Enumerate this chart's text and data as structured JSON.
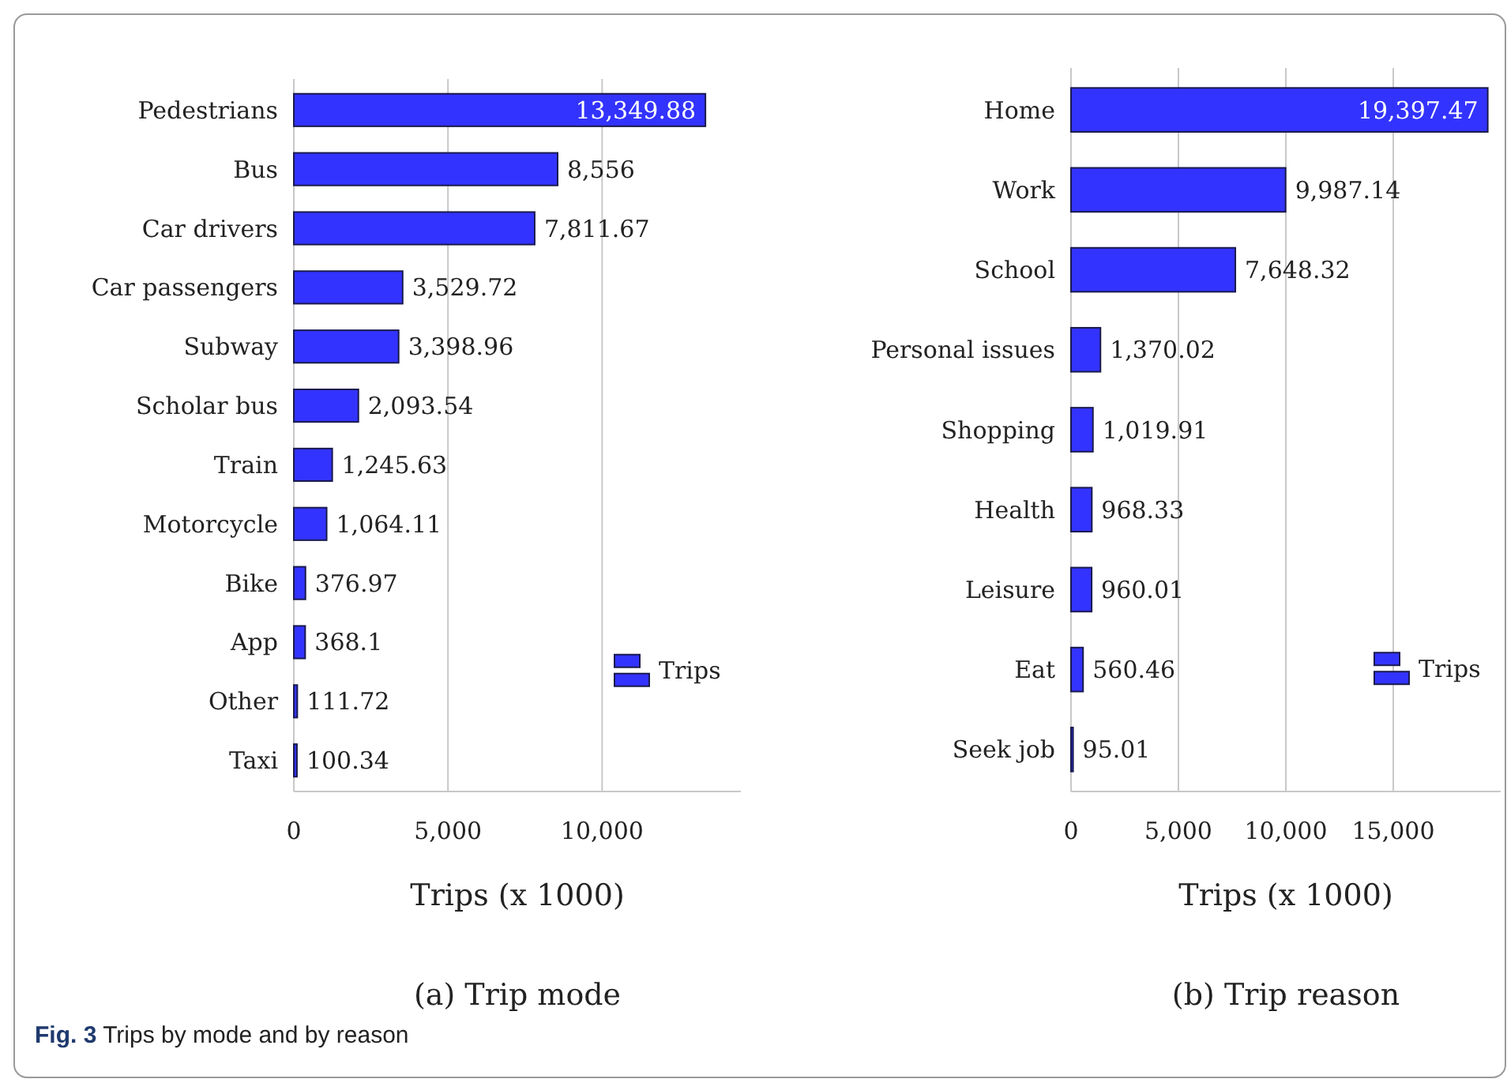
{
  "chart_data": [
    {
      "type": "bar",
      "orientation": "horizontal",
      "title": "(a) Trip mode",
      "xlabel": "Trips (x 1000)",
      "categories": [
        "Pedestrians",
        "Bus",
        "Car drivers",
        "Car passengers",
        "Subway",
        "Scholar bus",
        "Train",
        "Motorcycle",
        "Bike",
        "App",
        "Other",
        "Taxi"
      ],
      "series": [
        {
          "name": "Trips",
          "color": "#3333ff",
          "values": [
            13349.88,
            8556,
            7811.67,
            3529.72,
            3398.96,
            2093.54,
            1245.63,
            1064.11,
            376.97,
            368.1,
            111.72,
            100.34
          ]
        }
      ],
      "value_labels": [
        "13,349.88",
        "8,556",
        "7,811.67",
        "3,529.72",
        "3,398.96",
        "2,093.54",
        "1,245.63",
        "1,064.11",
        "376.97",
        "368.1",
        "111.72",
        "100.34"
      ],
      "xlim": [
        0,
        14500
      ],
      "xticks": [
        0,
        {
          "value": 5000,
          "label": "5,000"
        },
        {
          "value": 10000,
          "label": "10,000"
        }
      ],
      "grid": "x",
      "legend": "right",
      "annotations": [
        "Fig. 3 Trips by mode and by reason"
      ]
    },
    {
      "type": "bar",
      "orientation": "horizontal",
      "title": "(b) Trip reason",
      "xlabel": "Trips (x 1000)",
      "categories": [
        "Home",
        "Work",
        "School",
        "Personal issues",
        "Shopping",
        "Health",
        "Leisure",
        "Eat",
        "Seek job"
      ],
      "series": [
        {
          "name": "Trips",
          "color": "#3333ff",
          "values": [
            19397.47,
            9987.14,
            7648.32,
            1370.02,
            1019.91,
            968.33,
            960.01,
            560.46,
            95.01
          ]
        }
      ],
      "value_labels": [
        "19,397.47",
        "9,987.14",
        "7,648.32",
        "1,370.02",
        "1,019.91",
        "968.33",
        "960.01",
        "560.46",
        "95.01"
      ],
      "xlim": [
        0,
        20000
      ],
      "xticks": [
        0,
        {
          "value": 5000,
          "label": "5,000"
        },
        {
          "value": 10000,
          "label": "10,000"
        },
        {
          "value": 15000,
          "label": "15,000"
        }
      ],
      "grid": "x",
      "legend": "right"
    }
  ]
}
